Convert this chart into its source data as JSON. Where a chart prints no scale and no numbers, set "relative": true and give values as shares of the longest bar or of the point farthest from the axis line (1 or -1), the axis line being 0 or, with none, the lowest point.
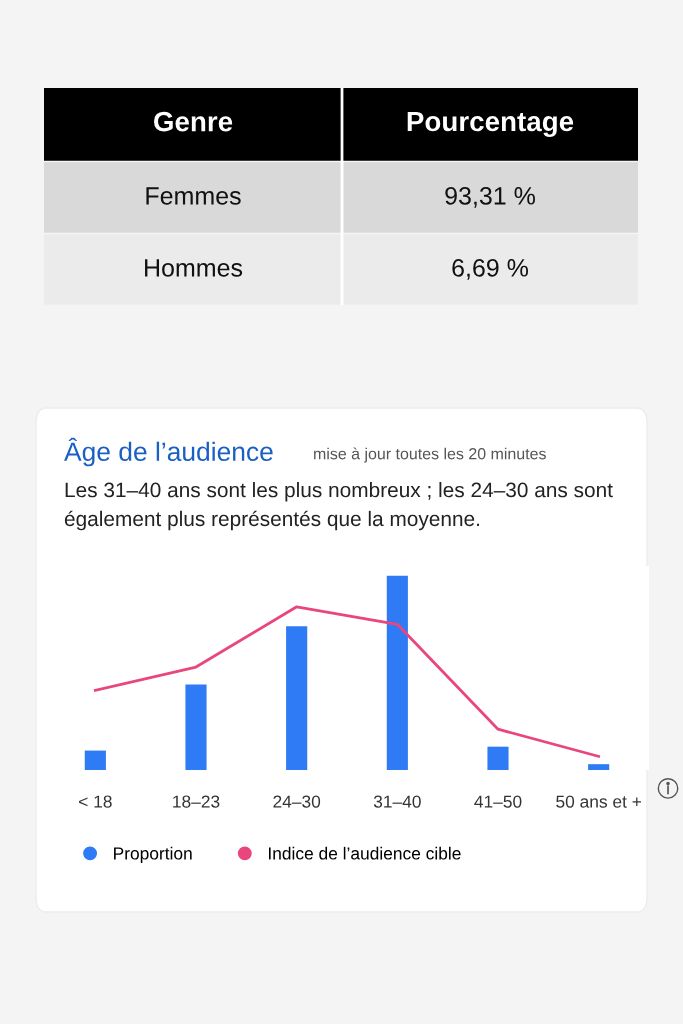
{
  "chart_data": [
    {
      "type": "other",
      "annotations": [
        "Genre",
        "Pourcentage"
      ],
      "categories": [
        "Femmes",
        "Hommes"
      ],
      "value_labels": [
        "93,31 %",
        "6,69 %"
      ]
    },
    {
      "type": "bar",
      "title": "Âge de l’audience",
      "subtitle": "mise à jour toutes les 20 minutes",
      "annotations": [
        "Les 31–40 ans sont les plus nombreux ; les 24–30 ans sont également plus représentés que la moyenne."
      ],
      "categories": [
        "< 18",
        "18–23",
        "24–30",
        "31–40",
        "41–50",
        "50 ans et +"
      ],
      "relative": true,
      "legend": "bottom left",
      "series": [
        {
          "name": "Proportion",
          "type": "bar",
          "color": "#2f7bf5",
          "values": [
            0.1,
            0.44,
            0.74,
            1.0,
            0.12,
            0.03
          ]
        },
        {
          "name": "Indice de l’audience cible",
          "type": "line",
          "color": "#e8467c",
          "values": [
            0.41,
            0.53,
            0.84,
            0.75,
            0.21,
            0.07
          ]
        }
      ]
    }
  ]
}
